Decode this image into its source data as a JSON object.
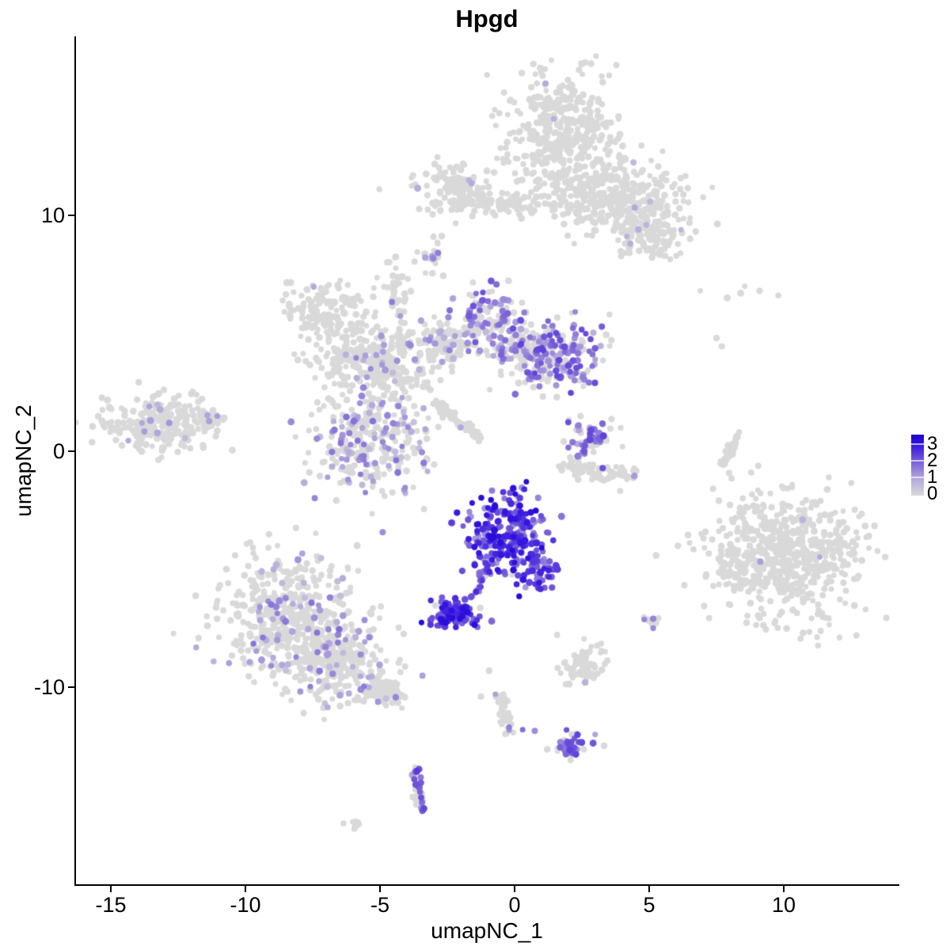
{
  "title": "Hpgd",
  "chart_data": {
    "type": "scatter",
    "title": "Hpgd",
    "xlabel": "umapNC_1",
    "ylabel": "umapNC_2",
    "x_tick_values": [
      -15,
      -10,
      -5,
      0,
      5,
      10
    ],
    "x_tick_labels": [
      "-15",
      "-10",
      "-5",
      "0",
      "5",
      "10"
    ],
    "y_tick_values": [
      10,
      0,
      -10
    ],
    "y_tick_labels": [
      "10",
      "0",
      "-10"
    ],
    "xlim": [
      -16.3,
      14.3
    ],
    "ylim": [
      -18.4,
      17.5
    ],
    "grid": false,
    "background_color": "#ffffff",
    "axis_color": "#000000",
    "point_color_zero": "#d9d9d9",
    "colormap_stops": [
      [
        0,
        "#d9d9d9"
      ],
      [
        1,
        "#b3a9dc"
      ],
      [
        2,
        "#7a5fd8"
      ],
      [
        3,
        "#3414e2"
      ],
      [
        3.6,
        "#1a02cc"
      ]
    ],
    "legend": {
      "position": "right",
      "tick_labels": [
        "3",
        "2",
        "1",
        "0"
      ],
      "tick_values": [
        3,
        2,
        1,
        0
      ],
      "max_value": 3.6,
      "top_color": "#1a02cc",
      "bottom_color": "#d9d9d9"
    },
    "clusters": [
      {
        "name": "top-main-blob",
        "cx": 1.8,
        "cy": 13.6,
        "sx": 1.05,
        "sy": 1.25,
        "n": 400,
        "frac": 0.008,
        "lo": 0.5,
        "hi": 1.2
      },
      {
        "name": "top-blob-east",
        "cx": 2.9,
        "cy": 11.0,
        "sx": 0.95,
        "sy": 0.8,
        "n": 210,
        "frac": 0.01,
        "lo": 0.5,
        "hi": 1.2
      },
      {
        "name": "top-arm-east",
        "cx": 4.4,
        "cy": 10.6,
        "sx": 0.9,
        "sy": 0.8,
        "n": 170,
        "frac": 0.02,
        "lo": 0.5,
        "hi": 1.2
      },
      {
        "name": "top-arm-southeast",
        "cx": 5.1,
        "cy": 9.2,
        "sx": 0.7,
        "sy": 0.55,
        "n": 110,
        "frac": 0.03,
        "lo": 0.6,
        "hi": 1.3
      },
      {
        "name": "band-west",
        "cx": -2.2,
        "cy": 11.2,
        "sx": 0.7,
        "sy": 0.5,
        "n": 120,
        "frac": 0.02,
        "lo": 0.8,
        "hi": 1.2
      },
      {
        "name": "band-thin",
        "cx": -0.4,
        "cy": 10.5,
        "sx": 1.1,
        "sy": 0.28,
        "n": 80,
        "frac": 0
      },
      {
        "name": "small-west-satellite",
        "cx": -3.0,
        "cy": 8.4,
        "sx": 0.3,
        "sy": 0.45,
        "n": 22,
        "frac": 0.1,
        "lo": 1.0,
        "hi": 1.6
      },
      {
        "name": "spider-west-arm",
        "cx": -7.2,
        "cy": 5.9,
        "sx": 0.85,
        "sy": 0.6,
        "n": 140,
        "frac": 0.02,
        "lo": 0.5,
        "hi": 1.2
      },
      {
        "name": "spider-west-mid",
        "cx": -6.1,
        "cy": 4.0,
        "sx": 0.75,
        "sy": 0.65,
        "n": 120,
        "frac": 0.06,
        "lo": 0.5,
        "hi": 1.5
      },
      {
        "name": "spider-center",
        "cx": -4.7,
        "cy": 3.6,
        "sx": 0.8,
        "sy": 0.85,
        "n": 190,
        "frac": 0.09,
        "lo": 0.5,
        "hi": 1.6
      },
      {
        "name": "spider-neck-top",
        "cx": -4.5,
        "cy": 7.1,
        "sx": 0.32,
        "sy": 0.4,
        "n": 24,
        "frac": 0.1,
        "lo": 1.2,
        "hi": 1.8
      },
      {
        "name": "spider-neck-chain",
        "cx": -4.2,
        "cy": 5.9,
        "sx": 0.22,
        "sy": 0.55,
        "n": 22,
        "frac": 0.05,
        "lo": 1.0,
        "hi": 1.4
      },
      {
        "name": "spider-east-neck",
        "cx": -2.6,
        "cy": 4.5,
        "sx": 0.6,
        "sy": 0.5,
        "n": 95,
        "frac": 0.18,
        "lo": 0.6,
        "hi": 1.8
      },
      {
        "name": "spider-upper-right-arm",
        "cx": -1.1,
        "cy": 5.6,
        "sx": 0.62,
        "sy": 0.75,
        "n": 135,
        "frac": 0.45,
        "lo": 0.8,
        "hi": 2.2
      },
      {
        "name": "spider-right-purple",
        "cx": 1.5,
        "cy": 4.1,
        "sx": 0.85,
        "sy": 0.7,
        "n": 235,
        "frac": 0.55,
        "lo": 0.8,
        "hi": 2.4
      },
      {
        "name": "spider-right-connector",
        "cx": 0.1,
        "cy": 4.4,
        "sx": 0.55,
        "sy": 0.4,
        "n": 70,
        "frac": 0.4,
        "lo": 0.7,
        "hi": 2.0
      },
      {
        "name": "spider-lower-lobe",
        "cx": -5.4,
        "cy": 0.4,
        "sx": 1.15,
        "sy": 1.05,
        "n": 300,
        "frac": 0.3,
        "lo": 0.5,
        "hi": 1.8
      },
      {
        "name": "diagonal-streak",
        "type": "arc",
        "x1": -2.9,
        "y1": 2.1,
        "x2": -1.3,
        "y2": 0.5,
        "bend": 0,
        "w": 0.1,
        "n": 60,
        "frac": 0
      },
      {
        "name": "far-west-cluster",
        "cx": -13.2,
        "cy": 1.2,
        "sx": 0.95,
        "sy": 0.65,
        "n": 235,
        "frac": 0.06,
        "lo": 0.5,
        "hi": 1.3
      },
      {
        "name": "far-west-tip",
        "type": "arc",
        "x1": -11.6,
        "y1": 1.35,
        "x2": -10.7,
        "y2": 1.35,
        "bend": 0,
        "w": 0.18,
        "n": 28,
        "frac": 0.08,
        "lo": 0.8,
        "hi": 1.2
      },
      {
        "name": "mid-right-purple",
        "cx": 2.8,
        "cy": 0.5,
        "sx": 0.5,
        "sy": 0.48,
        "n": 62,
        "frac": 0.6,
        "lo": 1.0,
        "hi": 2.4
      },
      {
        "name": "mid-right-crescent",
        "type": "arc",
        "x1": 1.9,
        "y1": -0.5,
        "x2": 4.4,
        "y2": -0.9,
        "bend": -0.5,
        "w": 0.18,
        "n": 80,
        "frac": 0.02,
        "lo": 1.0,
        "hi": 1.5
      },
      {
        "name": "east-sliver",
        "type": "arc",
        "x1": 8.3,
        "y1": 0.85,
        "x2": 7.7,
        "y2": -0.55,
        "bend": 0.15,
        "w": 0.07,
        "n": 45,
        "frac": 0
      },
      {
        "name": "east-big-cluster",
        "cx": 10.2,
        "cy": -4.4,
        "sx": 1.35,
        "sy": 1.35,
        "n": 600,
        "frac": 0.004,
        "lo": 0.6,
        "hi": 1.2
      },
      {
        "name": "east-big-west-lobe",
        "cx": 8.15,
        "cy": -4.9,
        "sx": 0.35,
        "sy": 0.6,
        "n": 42,
        "frac": 0
      },
      {
        "name": "central-high-expression",
        "cx": -0.3,
        "cy": -3.6,
        "sx": 0.8,
        "sy": 0.85,
        "n": 255,
        "frac": 0.96,
        "lo": 1.2,
        "hi": 3.3
      },
      {
        "name": "central-high-extension",
        "cx": 1.0,
        "cy": -5.0,
        "sx": 0.32,
        "sy": 0.5,
        "n": 48,
        "frac": 0.92,
        "lo": 1.2,
        "hi": 3.0
      },
      {
        "name": "central-trail",
        "type": "arc",
        "x1": -0.9,
        "y1": -4.8,
        "x2": -1.6,
        "y2": -6.2,
        "bend": 0,
        "w": 0.08,
        "n": 24,
        "frac": 0.9,
        "lo": 1.5,
        "hi": 2.8
      },
      {
        "name": "dense-purple-blob",
        "cx": -2.35,
        "cy": -6.9,
        "sx": 0.42,
        "sy": 0.33,
        "n": 100,
        "frac": 0.95,
        "lo": 1.8,
        "hi": 3.3
      },
      {
        "name": "southwest-big-a",
        "cx": -8.5,
        "cy": -7.0,
        "sx": 1.3,
        "sy": 1.25,
        "n": 470,
        "frac": 0.16,
        "lo": 0.5,
        "hi": 1.8
      },
      {
        "name": "southwest-big-b",
        "cx": -6.6,
        "cy": -9.0,
        "sx": 1.0,
        "sy": 0.8,
        "n": 240,
        "frac": 0.13,
        "lo": 0.5,
        "hi": 1.7
      },
      {
        "name": "southwest-tail",
        "type": "arc",
        "x1": -5.4,
        "y1": -9.8,
        "x2": -4.3,
        "y2": -10.6,
        "bend": 0,
        "w": 0.25,
        "n": 75,
        "frac": 0.1,
        "lo": 0.5,
        "hi": 1.5
      },
      {
        "name": "south-mid-gray-blob",
        "cx": 2.5,
        "cy": -9.0,
        "sx": 0.5,
        "sy": 0.45,
        "n": 70,
        "frac": 0.02,
        "lo": 0.8,
        "hi": 1.2
      },
      {
        "name": "south-vertical-trail",
        "type": "arc",
        "x1": -0.6,
        "y1": -10.3,
        "x2": -0.2,
        "y2": -12.1,
        "bend": 0,
        "w": 0.12,
        "n": 42,
        "frac": 0.05,
        "lo": 1.0,
        "hi": 1.5
      },
      {
        "name": "south-purple-cluster",
        "cx": 2.2,
        "cy": -12.5,
        "sx": 0.4,
        "sy": 0.3,
        "n": 42,
        "frac": 0.65,
        "lo": 1.0,
        "hi": 2.5
      },
      {
        "name": "bottom-purple-curve",
        "type": "arc",
        "x1": -3.6,
        "y1": -13.4,
        "x2": -3.4,
        "y2": -15.3,
        "bend": -0.15,
        "w": 0.12,
        "n": 48,
        "frac": 0.55,
        "lo": 1.0,
        "hi": 2.6
      },
      {
        "name": "bottom-tiny-gray",
        "cx": -5.9,
        "cy": -15.9,
        "sx": 0.18,
        "sy": 0.12,
        "n": 9,
        "frac": 0
      },
      {
        "name": "small-east-satellite",
        "cx": 5.0,
        "cy": -7.15,
        "sx": 0.2,
        "sy": 0.18,
        "n": 7,
        "frac": 0.3,
        "lo": 1.2,
        "hi": 1.8
      }
    ],
    "singles": [
      {
        "x": -3.6,
        "y": 11.15,
        "v": 0.9
      },
      {
        "x": -1.7,
        "y": 11.5,
        "v": 0.8
      },
      {
        "x": 4.6,
        "y": 9.4,
        "v": 0.9
      },
      {
        "x": 4.9,
        "y": 9.6,
        "v": 0.8
      },
      {
        "x": 4.3,
        "y": 8.8,
        "v": 0.9
      },
      {
        "x": 6.9,
        "y": 6.8,
        "v": 0
      },
      {
        "x": 8.4,
        "y": 6.7,
        "v": 0
      },
      {
        "x": 9.1,
        "y": 6.8,
        "v": 0
      },
      {
        "x": 9.8,
        "y": 6.6,
        "v": 0
      },
      {
        "x": 7.9,
        "y": 6.5,
        "v": 0
      },
      {
        "x": 8.55,
        "y": 7.0,
        "v": 0
      },
      {
        "x": 7.5,
        "y": 4.8,
        "v": 0
      },
      {
        "x": 7.7,
        "y": 4.45,
        "v": 0
      },
      {
        "x": 8.5,
        "y": -2.85,
        "v": 0
      },
      {
        "x": 12.9,
        "y": -2.65,
        "v": 0
      },
      {
        "x": 10.7,
        "y": -2.9,
        "v": 0.8
      },
      {
        "x": 4.45,
        "y": -1.05,
        "v": 1.2
      },
      {
        "x": -0.2,
        "y": -11.7,
        "v": 1.6
      },
      {
        "x": 0.3,
        "y": -11.8,
        "v": 1.8
      },
      {
        "x": 0.75,
        "y": -11.85,
        "v": 1.4
      },
      {
        "x": -1.3,
        "y": -7.0,
        "v": 2.2
      },
      {
        "x": -0.85,
        "y": -7.2,
        "v": 1.9
      },
      {
        "x": -1.75,
        "y": -7.1,
        "v": 0
      },
      {
        "x": -0.95,
        "y": -9.3,
        "v": 0
      },
      {
        "x": -1.25,
        "y": -10.4,
        "v": 0
      },
      {
        "x": 5.15,
        "y": -7.1,
        "v": 1.5
      },
      {
        "x": 5.15,
        "y": -7.5,
        "v": 1.4
      },
      {
        "x": -14.35,
        "y": 0.45,
        "v": 1.0
      }
    ]
  }
}
